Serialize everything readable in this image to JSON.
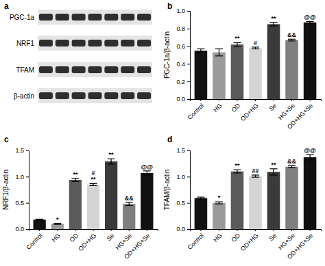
{
  "chart_data": [
    {
      "type": "blot",
      "title": "a",
      "rows": [
        "PGC-1a",
        "NRF1",
        "TFAM",
        "β-actin"
      ]
    },
    {
      "type": "bar",
      "title": "b",
      "ylabel": "PGC-1a/β-actin",
      "categories": [
        "Control",
        "HG",
        "OD",
        "OD+HG",
        "Se",
        "HG+Se",
        "OD+HG+Se"
      ],
      "values": [
        0.55,
        0.53,
        0.62,
        0.58,
        0.85,
        0.67,
        0.87
      ],
      "errors": [
        0.02,
        0.04,
        0.02,
        0.01,
        0.02,
        0.01,
        0.01
      ],
      "annotations": [
        [],
        [],
        [
          "**"
        ],
        [
          "#"
        ],
        [
          "**"
        ],
        [
          "&&"
        ],
        [
          "@@"
        ]
      ],
      "colors": [
        "#111111",
        "#9a9a9a",
        "#5a5a5a",
        "#d4d4d4",
        "#3a3a3a",
        "#7f7f7f",
        "#111111"
      ],
      "ylim": [
        0,
        1.0
      ],
      "yticks": [
        {
          "value": 0,
          "label": "0.0"
        },
        0.2,
        0.4,
        0.6,
        0.8,
        {
          "value": 1,
          "label": "1.0"
        }
      ]
    },
    {
      "type": "bar",
      "title": "c",
      "ylabel": "NRF1/β-actin",
      "categories": [
        "Control",
        "HG",
        "OD",
        "OD+HG",
        "Se",
        "HG+Se",
        "OD+HG+Se"
      ],
      "values": [
        0.18,
        0.1,
        0.94,
        0.85,
        1.29,
        0.48,
        1.07
      ],
      "errors": [
        0.01,
        0.01,
        0.03,
        0.02,
        0.05,
        0.03,
        0.04
      ],
      "annotations": [
        [],
        [
          "*"
        ],
        [
          "**"
        ],
        [
          "#",
          "**"
        ],
        [
          "**"
        ],
        [
          "&&"
        ],
        [
          "@@"
        ]
      ],
      "colors": [
        "#111111",
        "#9a9a9a",
        "#5a5a5a",
        "#d4d4d4",
        "#3a3a3a",
        "#7f7f7f",
        "#111111"
      ],
      "ylim": [
        0,
        1.5
      ],
      "yticks": [
        {
          "value": 0,
          "label": "0.0"
        },
        0.5,
        {
          "value": 1,
          "label": "1.0"
        },
        1.5
      ]
    },
    {
      "type": "bar",
      "title": "d",
      "ylabel": "TFAM/β-actin",
      "categories": [
        "Control",
        "HG",
        "OD",
        "OD+HG",
        "Se",
        "HG+Se",
        "OD+HG+Se"
      ],
      "values": [
        0.59,
        0.5,
        1.1,
        1.01,
        1.09,
        1.19,
        1.37
      ],
      "errors": [
        0.02,
        0.02,
        0.03,
        0.02,
        0.06,
        0.02,
        0.05
      ],
      "annotations": [
        [],
        [
          "*"
        ],
        [
          "**"
        ],
        [
          "##"
        ],
        [
          "**"
        ],
        [
          "&&"
        ],
        [
          "@@"
        ]
      ],
      "colors": [
        "#111111",
        "#9a9a9a",
        "#5a5a5a",
        "#d4d4d4",
        "#3a3a3a",
        "#7f7f7f",
        "#111111"
      ],
      "ylim": [
        0,
        1.5
      ],
      "yticks": [
        {
          "value": 0,
          "label": "0.0"
        },
        0.5,
        {
          "value": 1,
          "label": "1.0"
        },
        1.5
      ]
    }
  ]
}
